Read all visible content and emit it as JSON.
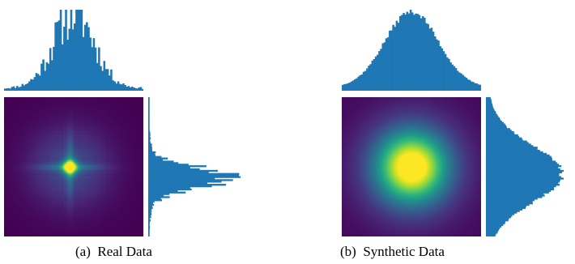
{
  "captions": {
    "a": "(a)  Real Data",
    "b": "(b)  Synthetic Data"
  },
  "colors": {
    "histogram": "#1f77b4",
    "colormap": "viridis",
    "heatmap_low": "#440154",
    "heatmap_mid": "#21918c",
    "heatmap_high": "#fde725"
  },
  "chart_data": [
    {
      "panel": "a",
      "type": "heatmap",
      "with_marginal_histograms": true,
      "colormap": "viridis",
      "description_values": {
        "peak": "sharp central peak with horizontal and vertical streaks",
        "top_histogram_shape": "spiky, roughly symmetric, peaked near center",
        "right_histogram_shape": "sharply peaked slightly below center, heavy tail"
      },
      "top_histogram": {
        "bins": 80,
        "peak_fraction": 0.5,
        "spread": 0.14,
        "noise": 0.35
      },
      "right_histogram": {
        "bins": 90,
        "peak_fraction": 0.58,
        "spread": 0.07,
        "noise": 0.3
      },
      "heatmap": {
        "center": [
          0.47,
          0.5
        ],
        "core_sigma": 0.035,
        "halo_sigma": 0.2,
        "cross_strength": 0.35
      }
    },
    {
      "panel": "b",
      "type": "heatmap",
      "with_marginal_histograms": true,
      "colormap": "viridis",
      "description_values": {
        "peak": "smooth gaussian blob centered",
        "top_histogram_shape": "smooth bell curve",
        "right_histogram_shape": "smooth bell curve, slightly below center"
      },
      "top_histogram": {
        "bins": 80,
        "peak_fraction": 0.5,
        "spread": 0.19,
        "noise": 0.04
      },
      "right_histogram": {
        "bins": 90,
        "peak_fraction": 0.55,
        "spread": 0.2,
        "noise": 0.04
      },
      "heatmap": {
        "center": [
          0.5,
          0.5
        ],
        "core_sigma": 0.17,
        "halo_sigma": 0.32,
        "cross_strength": 0.0
      }
    }
  ]
}
